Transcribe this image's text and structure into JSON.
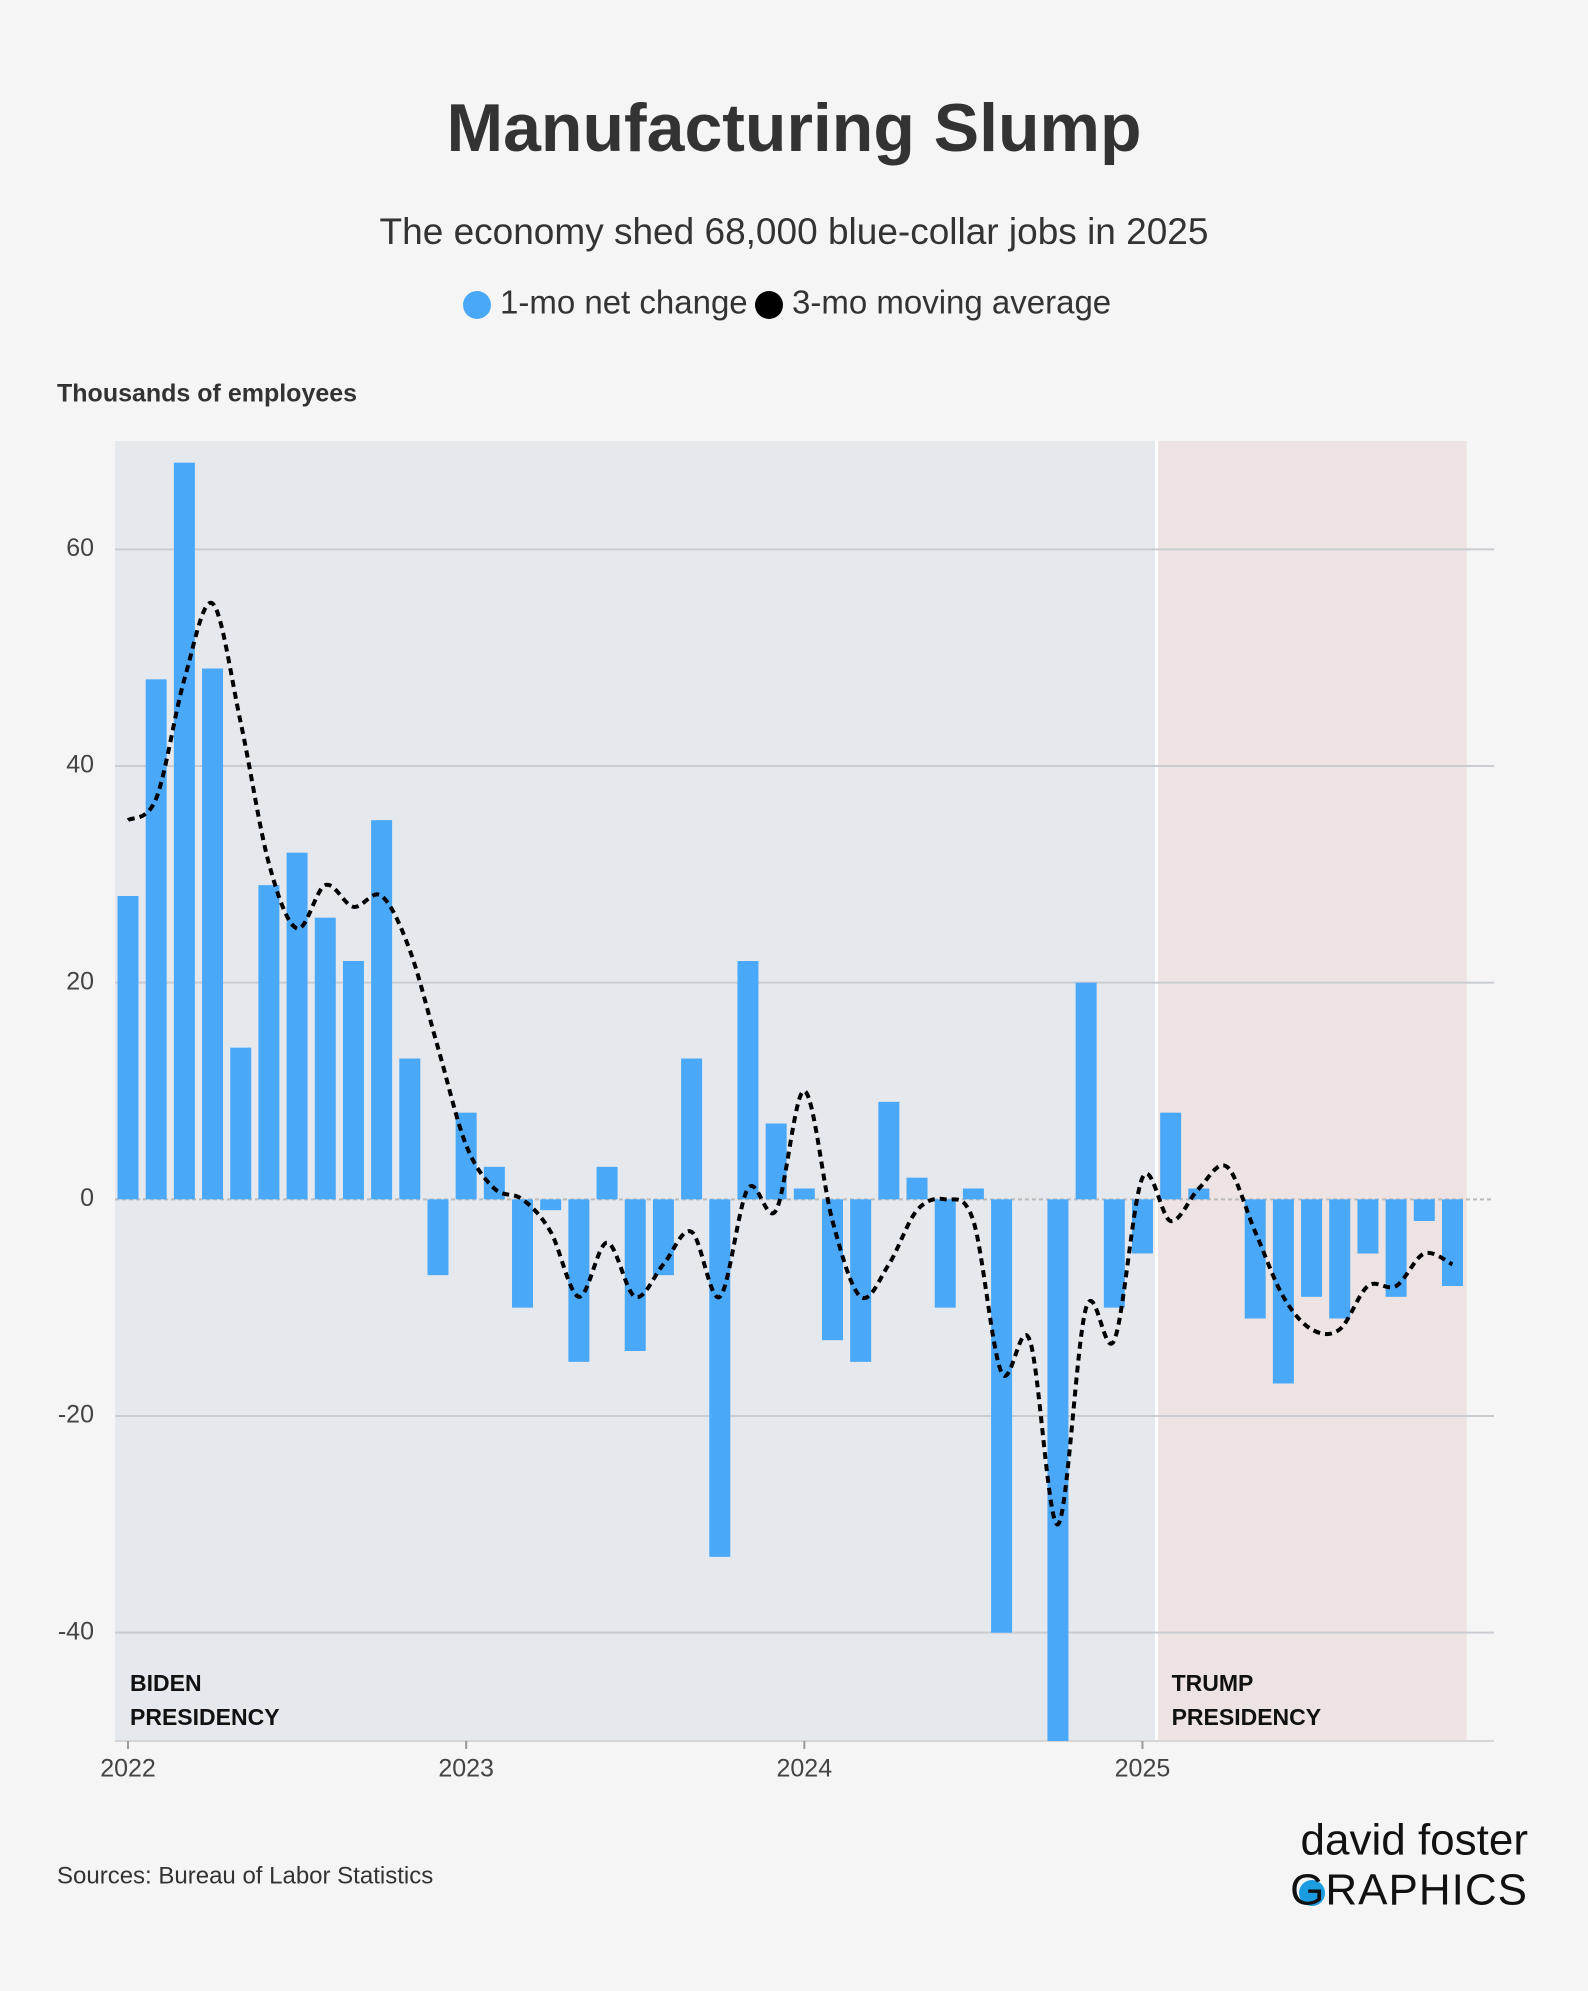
{
  "chart_data": {
    "type": "bar",
    "title": "Manufacturing Slump",
    "subtitle": "The economy shed 68,000 blue-collar jobs in 2025",
    "y_label": "Thousands of employees",
    "source": "Sources: Bureau of Labor Statistics",
    "logo": [
      "david foster",
      "GRAPHICS"
    ],
    "regions": [
      {
        "label": [
          "BIDEN",
          "PRESIDENCY"
        ],
        "color": "#e5e9ee"
      },
      {
        "label": [
          "TRUMP",
          "PRESIDENCY"
        ],
        "color": "#ede3e3"
      }
    ],
    "categories": [
      "2022",
      null,
      null,
      null,
      null,
      null,
      null,
      null,
      null,
      null,
      null,
      null,
      "2023",
      null,
      null,
      null,
      null,
      null,
      null,
      null,
      null,
      null,
      null,
      null,
      "2024",
      null,
      null,
      null,
      null,
      null,
      null,
      null,
      null,
      null,
      null,
      null,
      "2025",
      null,
      null,
      null,
      null,
      null,
      null,
      null,
      null,
      null,
      null,
      null
    ],
    "series": [
      {
        "name": "1-mo net change",
        "color": "#4aa8f8",
        "type": "bar",
        "values": [
          28,
          48,
          68,
          49,
          14,
          29,
          32,
          26,
          22,
          35,
          13,
          -7,
          8,
          3,
          -10,
          -1,
          -15,
          3,
          -14,
          -7,
          13,
          -33,
          22,
          7,
          1,
          -13,
          -15,
          9,
          2,
          -10,
          1,
          -40,
          0,
          -50,
          20,
          -10,
          -5,
          8,
          1,
          0,
          -11,
          -17,
          -9,
          -11,
          -5,
          -9,
          -2,
          -8
        ]
      },
      {
        "name": "3-mo moving average",
        "color": "#000000",
        "type": "line",
        "values": [
          35,
          37,
          48,
          55,
          44,
          31,
          25,
          29,
          27,
          28,
          23,
          14,
          5,
          1,
          0,
          -3,
          -9,
          -4,
          -9,
          -6,
          -3,
          -9,
          1,
          -1,
          10,
          -2,
          -9,
          -6,
          -1,
          0,
          -2,
          -16,
          -13,
          -30,
          -10,
          -13,
          2,
          -2,
          1,
          3,
          -3,
          -9,
          -12,
          -12,
          -8,
          -8,
          -5,
          -6
        ]
      }
    ],
    "ylim": [
      -50,
      70
    ],
    "yticks": [
      -40,
      -20,
      0,
      20,
      40,
      60
    ],
    "grid": true
  }
}
